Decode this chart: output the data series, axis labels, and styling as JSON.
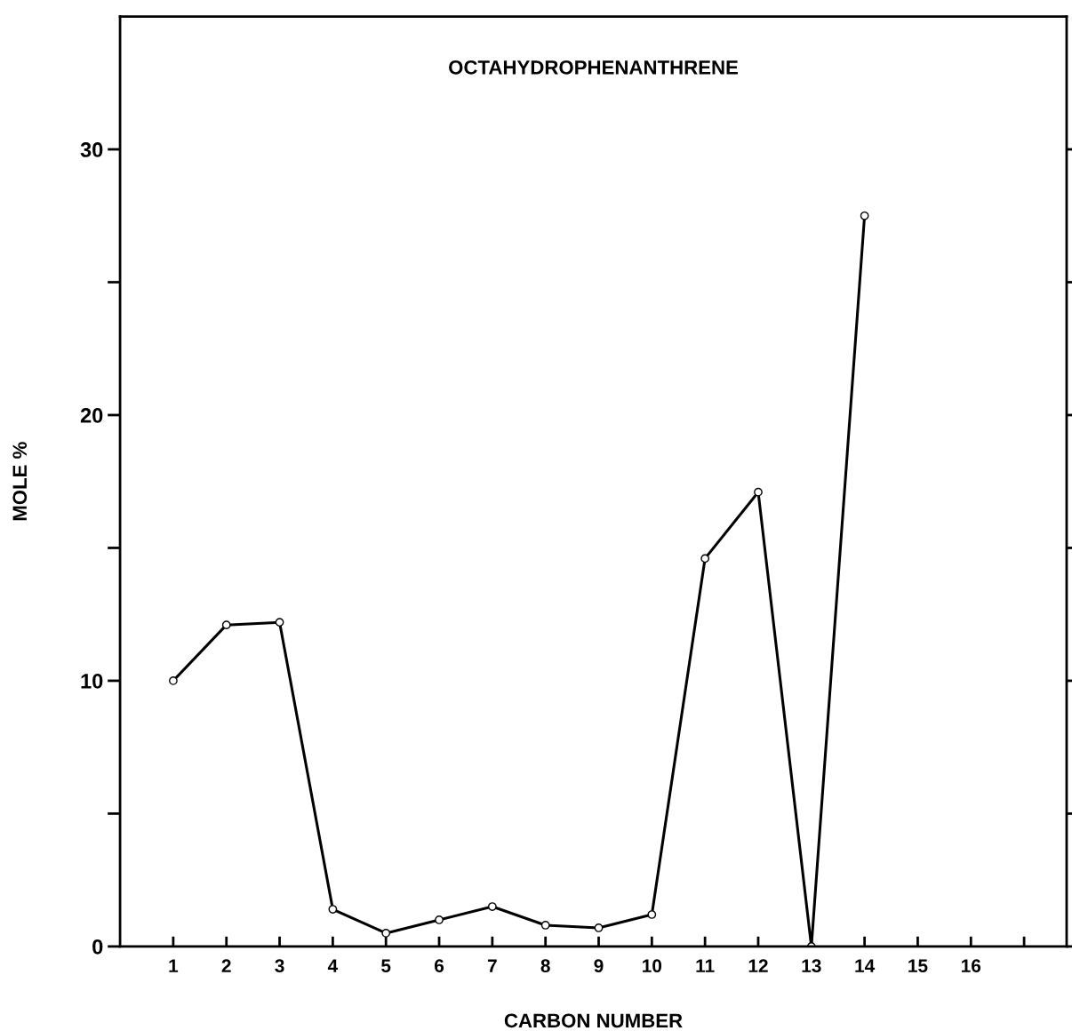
{
  "chart_data": {
    "type": "line",
    "title": "OCTAHYDROPHENANTHRENE",
    "xlabel": "CARBON NUMBER",
    "ylabel": "MOLE %",
    "x": [
      1,
      2,
      3,
      4,
      5,
      6,
      7,
      8,
      9,
      10,
      11,
      12,
      13,
      14
    ],
    "series": [
      {
        "color": "#000000",
        "values": [
          10.0,
          12.1,
          12.2,
          1.4,
          0.5,
          1.0,
          1.5,
          0.8,
          0.7,
          1.2,
          14.6,
          17.1,
          0,
          27.5
        ]
      }
    ],
    "xlim": [
      0,
      17.8
    ],
    "xticks": [
      1,
      2,
      3,
      4,
      5,
      6,
      7,
      8,
      9,
      10,
      11,
      12,
      13,
      14,
      15,
      16,
      {
        "value": 17,
        "label": null
      }
    ],
    "ylim": [
      0,
      35
    ],
    "yticks": [
      0,
      {
        "value": 5,
        "label": null
      },
      10,
      {
        "value": 15,
        "label": null
      },
      20,
      {
        "value": 25,
        "label": null
      },
      30
    ],
    "grid": false,
    "legend": false,
    "marker": "circle",
    "line_style": "solid"
  }
}
